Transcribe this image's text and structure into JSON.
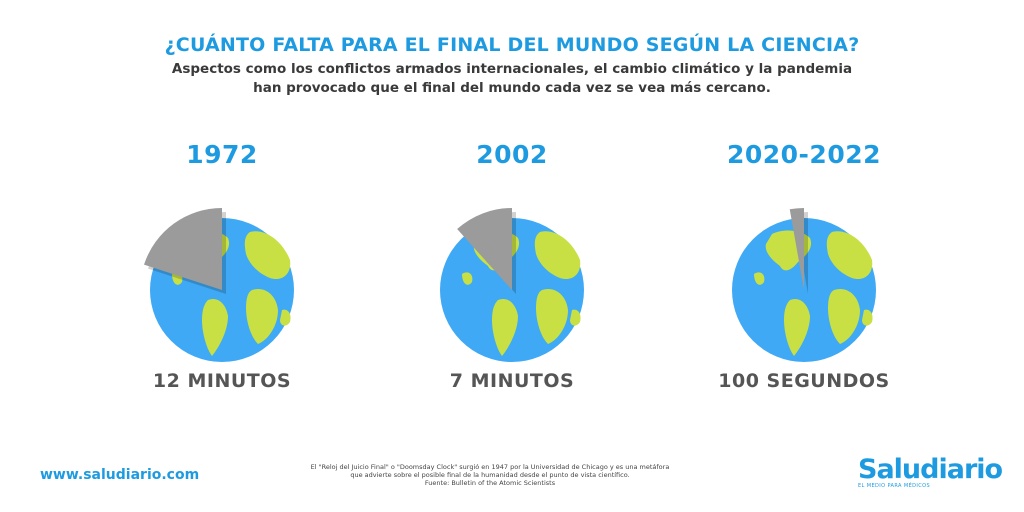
{
  "header": {
    "title": "¿CUÁNTO FALTA PARA EL FINAL DEL MUNDO SEGÚN LA CIENCIA?",
    "subtitle_line1": "Aspectos como los conflictos armados internacionales, el cambio climático y la pandemia",
    "subtitle_line2": "han provocado que el final del mundo cada vez se vea más cercano."
  },
  "colors": {
    "accent": "#1e9be0",
    "ocean": "#3fa9f5",
    "land": "#c8e043",
    "wedge": "#9b9b9b"
  },
  "panels": [
    {
      "year": "1972",
      "time_label": "12 MINUTOS",
      "minutes_to_midnight": 12
    },
    {
      "year": "2002",
      "time_label": "7 MINUTOS",
      "minutes_to_midnight": 7
    },
    {
      "year": "2020-2022",
      "time_label": "100 SEGUNDOS",
      "minutes_to_midnight": 1.67
    }
  ],
  "footer": {
    "url": "www.saludiario.com",
    "note_line1": "El \"Reloj del Juicio Final\" o \"Doomsday Clock\" surgió en 1947 por la Universidad de Chicago y es una metáfora",
    "note_line2": "que advierte sobre el posible final de la humanidad desde el punto de vista científico.",
    "note_line3": "Fuente: Bulletin of the Atomic Scientists",
    "brand_name": "Saludiario",
    "brand_tag": "EL MEDIO PARA MÉDICOS"
  }
}
